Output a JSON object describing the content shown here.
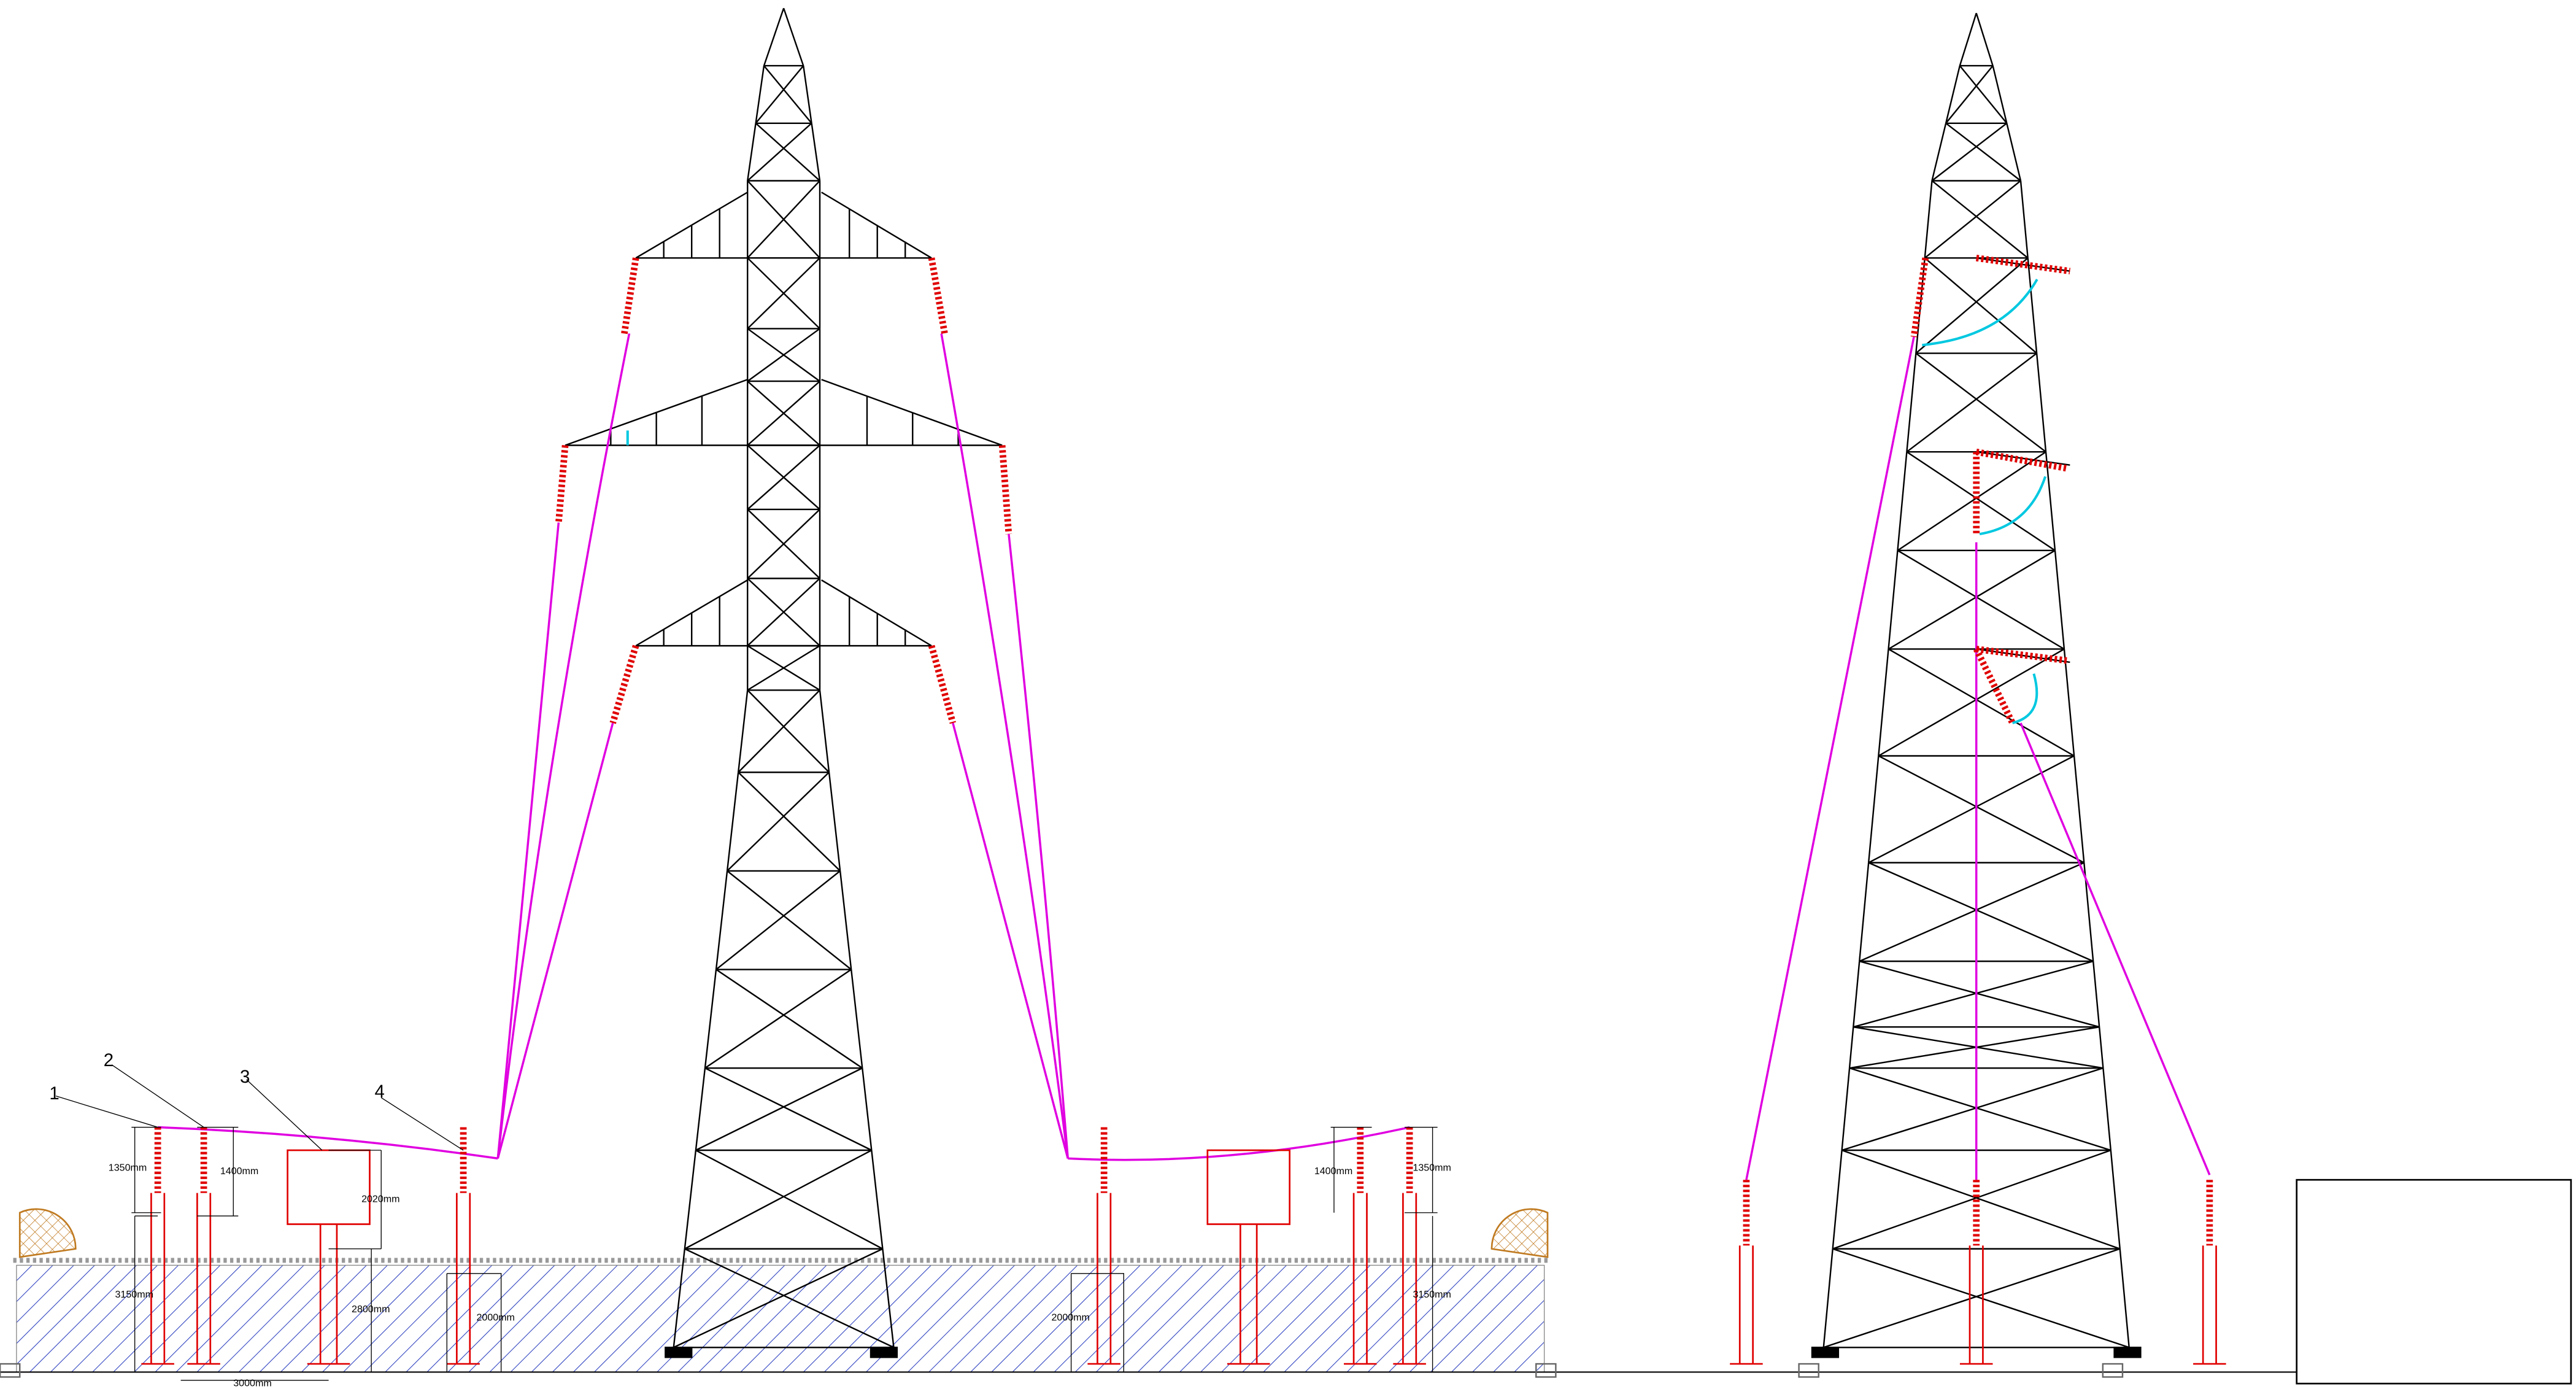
{
  "callouts": [
    "1",
    "2",
    "3",
    "4"
  ],
  "dimensions_left": [
    "1350mm",
    "1400mm",
    "2020mm",
    "3150mm",
    "2800mm",
    "2000mm",
    "3000mm"
  ],
  "dimensions_right": [
    "2000mm",
    "1400mm",
    "1350mm",
    "3150mm"
  ]
}
